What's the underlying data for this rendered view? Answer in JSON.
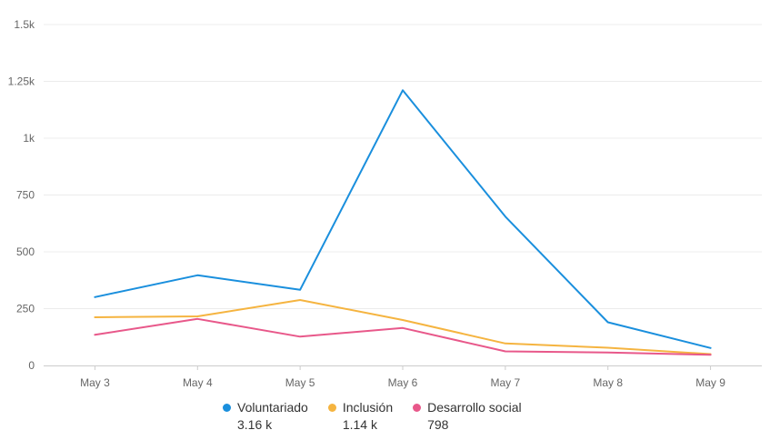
{
  "chart_data": {
    "type": "line",
    "title": "",
    "xlabel": "",
    "ylabel": "",
    "categories": [
      "May 3",
      "May 4",
      "May 5",
      "May 6",
      "May 7",
      "May 8",
      "May 9"
    ],
    "ylim": [
      0,
      1500
    ],
    "yticks": [
      0,
      250,
      500,
      750,
      1000,
      1250,
      1500
    ],
    "ytick_labels": [
      "0",
      "250",
      "500",
      "750",
      "1k",
      "1.25k",
      "1.5k"
    ],
    "grid": true,
    "legend_position": "bottom-center",
    "series": [
      {
        "name": "Voluntariado",
        "total_label": "3.16 k",
        "color": "#1a8fdd",
        "values": [
          301,
          397,
          333,
          1211,
          655,
          190,
          77
        ]
      },
      {
        "name": "Inclusión",
        "total_label": "1.14 k",
        "color": "#f5b440",
        "values": [
          212,
          216,
          288,
          200,
          97,
          78,
          50
        ]
      },
      {
        "name": "Desarrollo social",
        "total_label": "798",
        "color": "#e8588a",
        "values": [
          135,
          205,
          127,
          165,
          62,
          57,
          47
        ]
      }
    ]
  }
}
